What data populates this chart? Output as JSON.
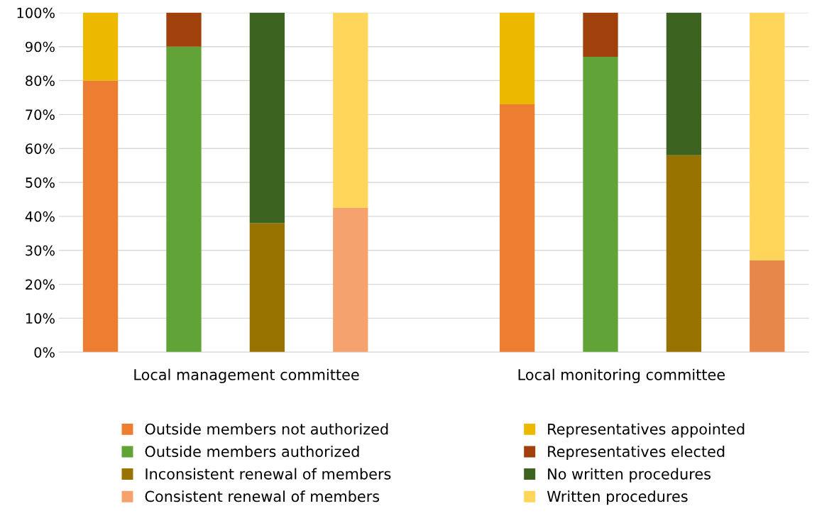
{
  "chart_data": {
    "type": "bar",
    "stacked": true,
    "categories": [
      null,
      null,
      null,
      null,
      null,
      null,
      null,
      null,
      null
    ],
    "series": [
      {
        "name": "Outside members not authorized",
        "color": "#ed7d31",
        "values": [
          80,
          null,
          null,
          null,
          null,
          73,
          null,
          null,
          null
        ]
      },
      {
        "name": "Outside members authorized",
        "color": "#62a337",
        "values": [
          null,
          90,
          null,
          null,
          null,
          null,
          87,
          null,
          null
        ]
      },
      {
        "name": "Inconsistent renewal of members",
        "color": "#997300",
        "values": [
          null,
          null,
          38,
          null,
          null,
          null,
          null,
          58,
          null
        ]
      },
      {
        "name": "Consistent renewal of members",
        "color": "#f5a26f",
        "colors": [
          null,
          null,
          null,
          "#f5a26f",
          null,
          null,
          null,
          null,
          "#e8874a"
        ],
        "values": [
          null,
          null,
          null,
          42.5,
          null,
          null,
          null,
          null,
          27
        ]
      },
      {
        "name": "Representatives appointed",
        "color": "#edb900",
        "values": [
          20,
          null,
          null,
          null,
          null,
          27,
          null,
          null,
          null
        ]
      },
      {
        "name": "Representatives elected",
        "color": "#a0410c",
        "values": [
          null,
          10,
          null,
          null,
          null,
          null,
          13,
          null,
          null
        ]
      },
      {
        "name": "No written procedures",
        "color": "#3d6321",
        "values": [
          null,
          null,
          62,
          null,
          null,
          null,
          null,
          42,
          null
        ]
      },
      {
        "name": "Written procedures",
        "color": "#ffd55a",
        "values": [
          null,
          null,
          null,
          57.5,
          null,
          null,
          null,
          null,
          73
        ]
      }
    ],
    "ylim": [
      0,
      100
    ],
    "yticks": [
      {
        "value": 0,
        "label": "0%"
      },
      {
        "value": 10,
        "label": "10%"
      },
      {
        "value": 20,
        "label": "20%"
      },
      {
        "value": 30,
        "label": "30%"
      },
      {
        "value": 40,
        "label": "40%"
      },
      {
        "value": 50,
        "label": "50%"
      },
      {
        "value": 60,
        "label": "60%"
      },
      {
        "value": 70,
        "label": "70%"
      },
      {
        "value": 80,
        "label": "80%"
      },
      {
        "value": 90,
        "label": "90%"
      },
      {
        "value": 100,
        "label": "100%"
      }
    ],
    "grid": "y",
    "legend": "bottom",
    "annotations": [
      "Local management committee",
      "Local monitoring committee"
    ]
  }
}
